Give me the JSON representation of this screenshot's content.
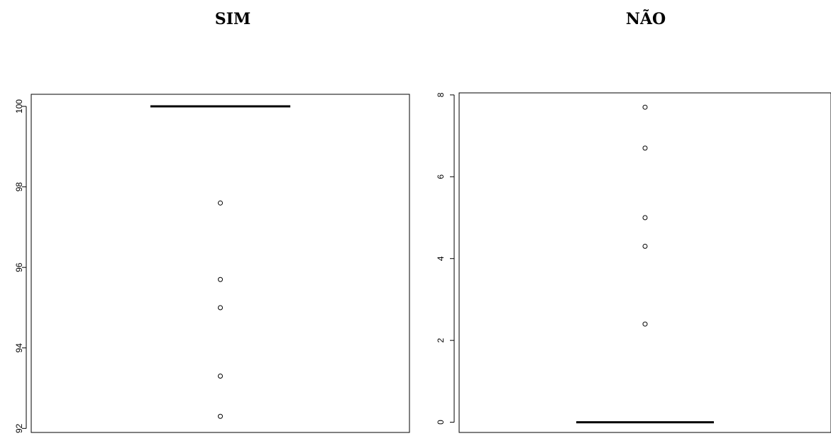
{
  "chart_data": [
    {
      "type": "boxplot",
      "title": "SIM",
      "xlabel": "",
      "ylabel": "",
      "ylim": [
        91.9,
        100.3
      ],
      "yticks": [
        "92",
        "94",
        "96",
        "98",
        "100"
      ],
      "box": {
        "q1": 100,
        "median": 100,
        "q3": 100,
        "whisker_low": 100,
        "whisker_high": 100
      },
      "outliers": [
        97.6,
        95.7,
        95.0,
        93.3,
        92.3
      ],
      "grid": false,
      "axis_color": "#000000",
      "mark_color": "#000000"
    },
    {
      "type": "boxplot",
      "title": "NÃO",
      "xlabel": "",
      "ylabel": "",
      "ylim": [
        -0.25,
        8.05
      ],
      "yticks": [
        "0",
        "2",
        "4",
        "6",
        "8"
      ],
      "box": {
        "q1": 0,
        "median": 0,
        "q3": 0,
        "whisker_low": 0,
        "whisker_high": 0
      },
      "outliers": [
        7.7,
        6.7,
        5.0,
        4.3,
        2.4
      ],
      "grid": false,
      "axis_color": "#000000",
      "mark_color": "#000000"
    }
  ]
}
